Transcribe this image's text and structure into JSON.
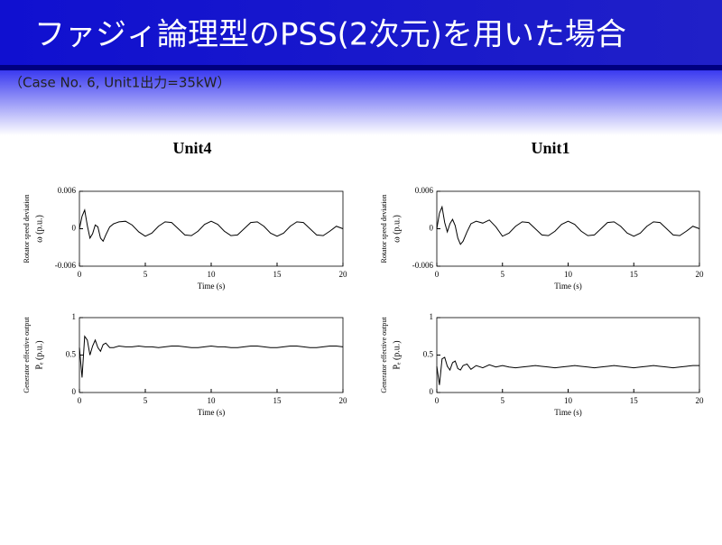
{
  "slide": {
    "title": "ファジィ論理型のPSS(2次元)を用いた場合",
    "subtitle": "（Case No. 6, Unit1出力=35kW）",
    "columns": [
      "Unit4",
      "Unit1"
    ]
  },
  "chart_data": [
    {
      "type": "line",
      "ylabel": [
        "Rotator speed deviation",
        "ω (p.u.)"
      ],
      "xlabel": "Time (s)",
      "xlim": [
        0,
        20
      ],
      "xticks": [
        0,
        5,
        10,
        15,
        20
      ],
      "ylim": [
        -0.006,
        0.006
      ],
      "yticks": [
        -0.006,
        0,
        0.006
      ],
      "series": [
        {
          "color": "#000000",
          "x": [
            0,
            0.2,
            0.4,
            0.6,
            0.8,
            1,
            1.2,
            1.4,
            1.6,
            1.8,
            2,
            2.3,
            2.6,
            3,
            3.5,
            4,
            4.5,
            5,
            5.5,
            6,
            6.5,
            7,
            7.5,
            8,
            8.5,
            9,
            9.5,
            10,
            10.5,
            11,
            11.5,
            12,
            12.5,
            13,
            13.5,
            14,
            14.5,
            15,
            15.5,
            16,
            16.5,
            17,
            17.5,
            18,
            18.5,
            19,
            19.5,
            20
          ],
          "values": [
            0,
            0.002,
            0.003,
            0.0005,
            -0.0015,
            -0.0008,
            0.0006,
            0.0003,
            -0.0015,
            -0.002,
            -0.001,
            0.0003,
            0.0008,
            0.0011,
            0.0012,
            0.0006,
            -0.0005,
            -0.0012,
            -0.0007,
            0.0004,
            0.0011,
            0.001,
            0,
            -0.001,
            -0.0011,
            -0.0004,
            0.0007,
            0.0012,
            0.0007,
            -0.0004,
            -0.0011,
            -0.001,
            0,
            0.001,
            0.0011,
            0.0004,
            -0.0007,
            -0.0012,
            -0.0007,
            0.0004,
            0.0011,
            0.001,
            0,
            -0.001,
            -0.0011,
            -0.0004,
            0.0004,
            0
          ]
        }
      ]
    },
    {
      "type": "line",
      "ylabel": [
        "Rotator speed deviation",
        "ω (p.u.)"
      ],
      "xlabel": "Time (s)",
      "xlim": [
        0,
        20
      ],
      "xticks": [
        0,
        5,
        10,
        15,
        20
      ],
      "ylim": [
        -0.006,
        0.006
      ],
      "yticks": [
        -0.006,
        0,
        0.006
      ],
      "series": [
        {
          "color": "#000000",
          "x": [
            0,
            0.2,
            0.4,
            0.6,
            0.8,
            1,
            1.2,
            1.4,
            1.6,
            1.8,
            2,
            2.3,
            2.6,
            3,
            3.5,
            4,
            4.5,
            5,
            5.5,
            6,
            6.5,
            7,
            7.5,
            8,
            8.5,
            9,
            9.5,
            10,
            10.5,
            11,
            11.5,
            12,
            12.5,
            13,
            13.5,
            14,
            14.5,
            15,
            15.5,
            16,
            16.5,
            17,
            17.5,
            18,
            18.5,
            19,
            19.5,
            20
          ],
          "values": [
            0,
            0.0025,
            0.0035,
            0.001,
            -0.0005,
            0.0008,
            0.0015,
            0.0005,
            -0.0015,
            -0.0025,
            -0.002,
            -0.0005,
            0.0008,
            0.0012,
            0.0009,
            0.0014,
            0.0003,
            -0.0012,
            -0.0007,
            0.0004,
            0.0011,
            0.001,
            0,
            -0.001,
            -0.0011,
            -0.0004,
            0.0007,
            0.0012,
            0.0007,
            -0.0004,
            -0.0011,
            -0.001,
            0,
            0.001,
            0.0011,
            0.0004,
            -0.0007,
            -0.0012,
            -0.0007,
            0.0004,
            0.0011,
            0.001,
            0,
            -0.001,
            -0.0011,
            -0.0004,
            0.0004,
            0
          ]
        }
      ]
    },
    {
      "type": "line",
      "ylabel": [
        "Generator effective output",
        "Pₑ (p.u.)"
      ],
      "xlabel": "Time (s)",
      "xlim": [
        0,
        20
      ],
      "xticks": [
        0,
        5,
        10,
        15,
        20
      ],
      "ylim": [
        0,
        1
      ],
      "yticks": [
        0,
        0.5,
        1
      ],
      "series": [
        {
          "color": "#000000",
          "x": [
            0,
            0.2,
            0.4,
            0.6,
            0.8,
            1,
            1.2,
            1.4,
            1.6,
            1.8,
            2,
            2.3,
            2.6,
            3,
            3.5,
            4,
            4.5,
            5,
            5.5,
            6,
            6.5,
            7,
            7.5,
            8,
            8.5,
            9,
            9.5,
            10,
            10.5,
            11,
            11.5,
            12,
            12.5,
            13,
            13.5,
            14,
            14.5,
            15,
            15.5,
            16,
            16.5,
            17,
            17.5,
            18,
            18.5,
            19,
            19.5,
            20
          ],
          "values": [
            0.6,
            0.2,
            0.75,
            0.7,
            0.5,
            0.62,
            0.7,
            0.6,
            0.55,
            0.64,
            0.66,
            0.6,
            0.6,
            0.62,
            0.61,
            0.61,
            0.62,
            0.61,
            0.61,
            0.6,
            0.61,
            0.62,
            0.62,
            0.61,
            0.6,
            0.6,
            0.61,
            0.62,
            0.61,
            0.61,
            0.6,
            0.6,
            0.61,
            0.62,
            0.62,
            0.61,
            0.6,
            0.6,
            0.61,
            0.62,
            0.62,
            0.61,
            0.6,
            0.6,
            0.61,
            0.62,
            0.62,
            0.61
          ]
        }
      ]
    },
    {
      "type": "line",
      "ylabel": [
        "Generator effective output",
        "Pₑ (p.u.)"
      ],
      "xlabel": "Time (s)",
      "xlim": [
        0,
        20
      ],
      "xticks": [
        0,
        5,
        10,
        15,
        20
      ],
      "ylim": [
        0,
        1
      ],
      "yticks": [
        0,
        0.5,
        1
      ],
      "series": [
        {
          "color": "#000000",
          "x": [
            0,
            0.2,
            0.4,
            0.6,
            0.8,
            1,
            1.2,
            1.4,
            1.6,
            1.8,
            2,
            2.3,
            2.6,
            3,
            3.5,
            4,
            4.5,
            5,
            5.5,
            6,
            6.5,
            7,
            7.5,
            8,
            8.5,
            9,
            9.5,
            10,
            10.5,
            11,
            11.5,
            12,
            12.5,
            13,
            13.5,
            14,
            14.5,
            15,
            15.5,
            16,
            16.5,
            17,
            17.5,
            18,
            18.5,
            19,
            19.5,
            20
          ],
          "values": [
            0.35,
            0.1,
            0.45,
            0.47,
            0.35,
            0.3,
            0.4,
            0.42,
            0.32,
            0.3,
            0.36,
            0.38,
            0.31,
            0.36,
            0.33,
            0.37,
            0.34,
            0.36,
            0.34,
            0.33,
            0.34,
            0.35,
            0.36,
            0.35,
            0.34,
            0.33,
            0.34,
            0.35,
            0.36,
            0.35,
            0.34,
            0.33,
            0.34,
            0.35,
            0.36,
            0.35,
            0.34,
            0.33,
            0.34,
            0.35,
            0.36,
            0.35,
            0.34,
            0.33,
            0.34,
            0.35,
            0.36,
            0.36
          ]
        }
      ]
    }
  ]
}
